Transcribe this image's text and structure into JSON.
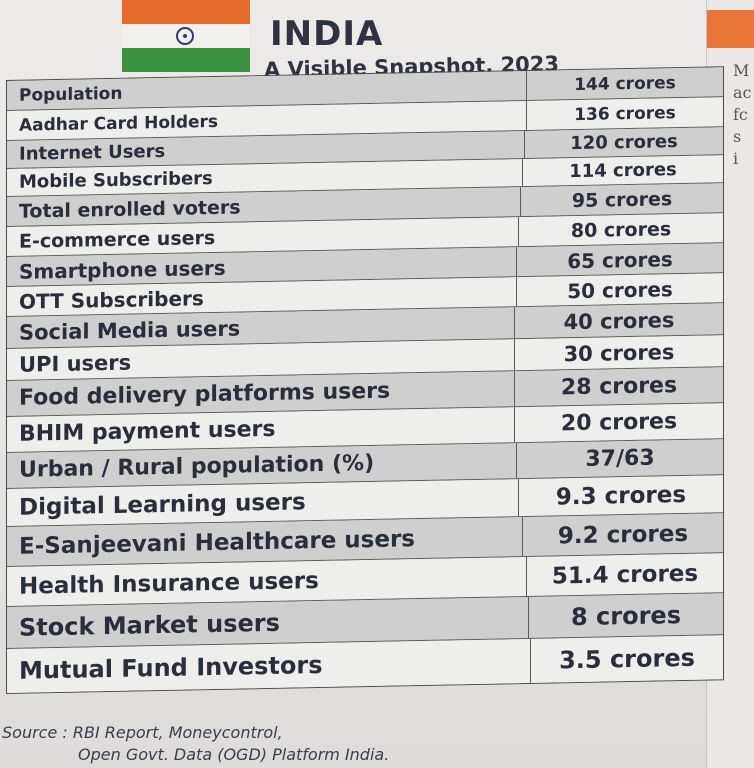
{
  "header": {
    "title": "INDIA",
    "subtitle": "A Visible Snapshot, 2023"
  },
  "side_card": {
    "lines": [
      "M",
      "ac",
      "fc",
      "s",
      "i"
    ]
  },
  "table": {
    "rows": [
      {
        "label": "Population",
        "value": "144 crores"
      },
      {
        "label": "Aadhar Card Holders",
        "value": "136 crores"
      },
      {
        "label": "Internet Users",
        "value": "120 crores"
      },
      {
        "label": "Mobile Subscribers",
        "value": "114 crores"
      },
      {
        "label": "Total enrolled voters",
        "value": "95 crores"
      },
      {
        "label": "E-commerce users",
        "value": "80 crores"
      },
      {
        "label": "Smartphone users",
        "value": "65 crores"
      },
      {
        "label": "OTT Subscribers",
        "value": "50 crores"
      },
      {
        "label": "Social Media users",
        "value": "40 crores"
      },
      {
        "label": "UPI users",
        "value": "30 crores"
      },
      {
        "label": "Food delivery platforms users",
        "value": "28 crores"
      },
      {
        "label": "BHIM payment users",
        "value": "20 crores"
      },
      {
        "label": "Urban / Rural population (%)",
        "value": "37/63"
      },
      {
        "label": "Digital Learning users",
        "value": "9.3 crores"
      },
      {
        "label": "E-Sanjeevani Healthcare users",
        "value": "9.2 crores"
      },
      {
        "label": "Health Insurance users",
        "value": "51.4 crores"
      },
      {
        "label": "Stock Market users",
        "value": "8 crores"
      },
      {
        "label": "Mutual Fund Investors",
        "value": "3.5 crores"
      }
    ]
  },
  "source": {
    "line1": "Source : RBI Report, Moneycontrol,",
    "line2": "Open Govt. Data (OGD) Platform India."
  }
}
